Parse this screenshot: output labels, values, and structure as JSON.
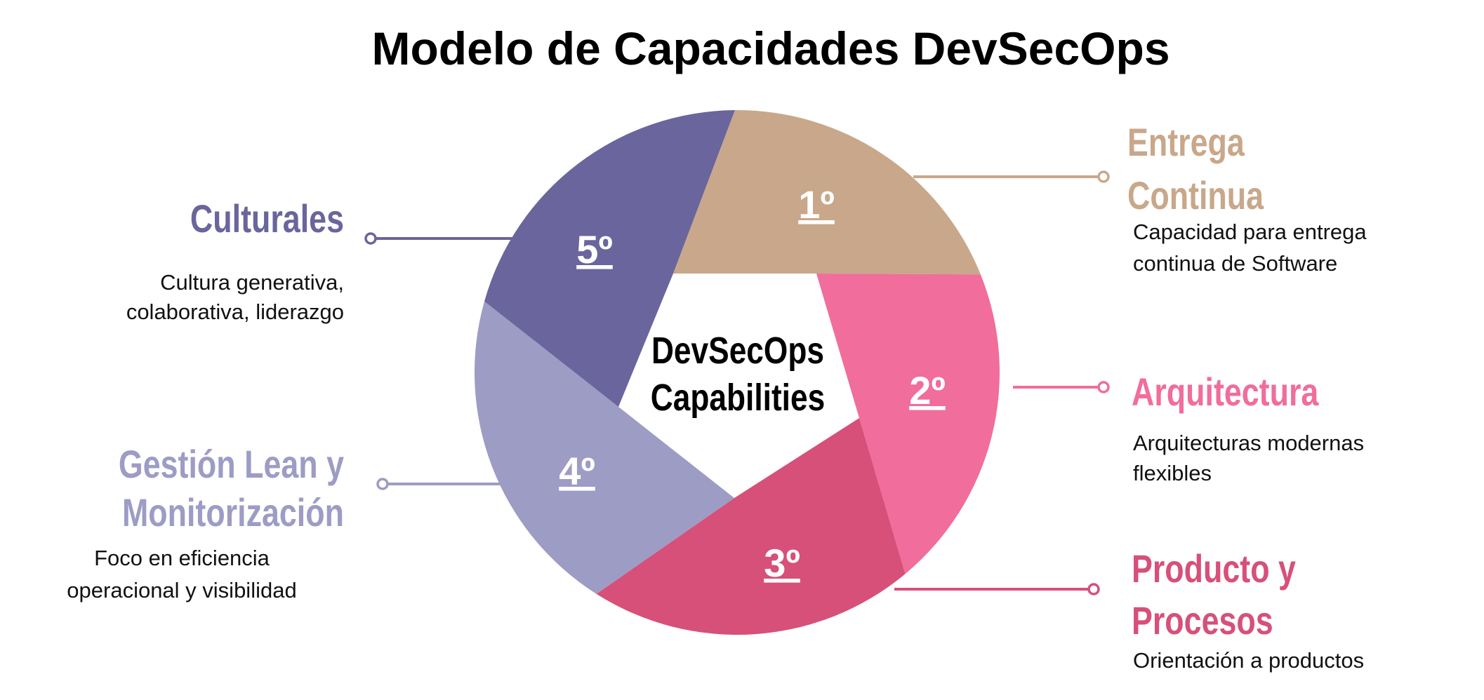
{
  "title": "Modelo de Capacidades DevSecOps",
  "center": {
    "line1": "DevSecOps",
    "line2": "Capabilities"
  },
  "segments": [
    {
      "rank": "1º",
      "color": "#c9a78a",
      "heading": [
        "Entrega",
        "Continua"
      ],
      "description": [
        "Capacidad para entrega",
        "continua de Software"
      ]
    },
    {
      "rank": "2º",
      "color": "#f06d9c",
      "heading": [
        "Arquitectura"
      ],
      "description": [
        "Arquitecturas modernas",
        "flexibles"
      ]
    },
    {
      "rank": "3º",
      "color": "#d6507a",
      "heading": [
        "Producto y",
        "Procesos"
      ],
      "description": [
        "Orientación a productos"
      ]
    },
    {
      "rank": "4º",
      "color": "#9d9cc5",
      "heading": [
        "Gestión Lean y",
        "Monitorización"
      ],
      "description": [
        "Foco en eficiencia",
        "operacional y visibilidad"
      ]
    },
    {
      "rank": "5º",
      "color": "#6a659c",
      "heading": [
        "Culturales"
      ],
      "description": [
        "Cultura generativa,",
        "colaborativa, liderazgo"
      ]
    }
  ]
}
